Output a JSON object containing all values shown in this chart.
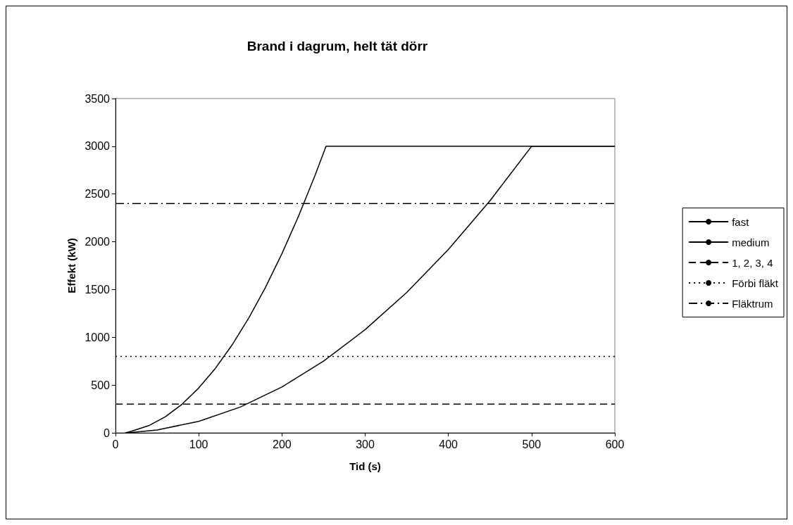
{
  "chart_data": {
    "type": "line",
    "title": "Brand i dagrum, helt tät dörr",
    "xlabel": "Tid (s)",
    "ylabel": "Effekt (kW)",
    "xlim": [
      0,
      600
    ],
    "xticks": [
      0,
      100,
      200,
      300,
      400,
      500,
      600
    ],
    "ylim": [
      0,
      3500
    ],
    "yticks": [
      0,
      500,
      1000,
      1500,
      2000,
      2500,
      3000,
      3500
    ],
    "grid": false,
    "legend": "right",
    "marker": "none",
    "series": [
      {
        "name": "fast",
        "color": "#000000",
        "line_style": "solid",
        "x": [
          12,
          20,
          40,
          60,
          80,
          100,
          120,
          140,
          160,
          180,
          200,
          220,
          240,
          253,
          600
        ],
        "values": [
          0,
          19,
          75,
          169,
          300,
          469,
          675,
          919,
          1200,
          1519,
          1876,
          2270,
          2700,
          3000,
          3000
        ]
      },
      {
        "name": "medium",
        "color": "#000000",
        "line_style": "solid",
        "x": [
          15,
          50,
          100,
          150,
          200,
          250,
          300,
          350,
          400,
          450,
          500,
          600
        ],
        "values": [
          0,
          30,
          120,
          270,
          480,
          750,
          1080,
          1470,
          1920,
          2430,
          3000,
          3000
        ]
      },
      {
        "name": "1, 2, 3, 4",
        "color": "#000000",
        "line_style": "dashed",
        "x": [
          0,
          600
        ],
        "values": [
          300,
          300
        ]
      },
      {
        "name": "Förbi fläkt",
        "color": "#000000",
        "line_style": "dotted",
        "x": [
          0,
          600
        ],
        "values": [
          800,
          800
        ]
      },
      {
        "name": "Fläktrum",
        "color": "#000000",
        "line_style": "dashdot",
        "x": [
          0,
          600
        ],
        "values": [
          2400,
          2400
        ]
      }
    ]
  }
}
